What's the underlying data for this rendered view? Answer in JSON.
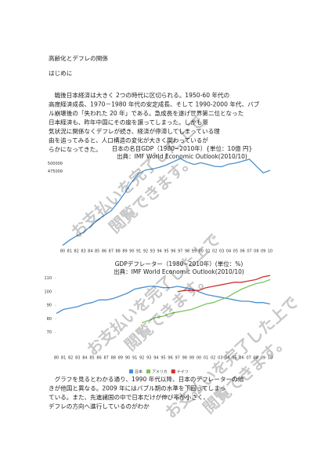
{
  "header": {
    "title": "高齢化とデフレの関係"
  },
  "sections": [
    {
      "heading": "はじめに",
      "lines": [
        "　戦後日本経済は大きく 2つの時代に区切られる。1950-60 年代の",
        "高度経済成長、1970－1980 年代の安定成長、そして 1990-2000 年代、バブ",
        "ル崩壊後の「失われた 20 年」である。急成長を遂げ世界第二位となった",
        "日本経済も、昨年中国にその座を譲ってしまった。しかも景",
        "気状況に関係なくデフレが続き、経済が停滞してしまっている理",
        "由を追ってみると、人口構造の変化が大きく関わっているが",
        "らかになってきた。"
      ]
    },
    {
      "lines": [
        "　グラフを見るとわかる通り、1990 年代以降、日本のデフレーターの傾",
        "きが他国と異なる。2009 年にはバブル期の水準を下回ってしまっ",
        "ている。また、先進諸国の中で日本だけが伸び率が小さく、",
        "デフレの方向へ進行しているのがわか"
      ]
    }
  ],
  "figures": [
    {
      "type": "line",
      "title": "日本の名目GDP（1980~2010年）{単位：10億 円}",
      "subtitle": "出典：IMF World Economic Outlook(2010/10)",
      "x": [
        "80",
        "81",
        "82",
        "83",
        "84",
        "85",
        "86",
        "87",
        "88",
        "89",
        "90",
        "91",
        "92",
        "93",
        "94",
        "95",
        "96",
        "97",
        "98",
        "99",
        "00",
        "01",
        "02",
        "03",
        "04",
        "05",
        "06",
        "07",
        "08",
        "09",
        "10"
      ],
      "series": [
        {
          "name": "日本",
          "color": "#4a90d0",
          "values": [
            248000,
            264000,
            277000,
            288000,
            306000,
            325000,
            340000,
            354000,
            380000,
            410000,
            443000,
            469000,
            480000,
            483000,
            488000,
            495000,
            505000,
            515000,
            504000,
            497000,
            502000,
            497000,
            491000,
            490000,
            498000,
            501000,
            507000,
            513000,
            492000,
            471000,
            479000
          ]
        }
      ],
      "ylim": [
        250000,
        525000
      ],
      "yticks": [
        475000,
        500000
      ],
      "legend": false
    },
    {
      "type": "line",
      "title": "GDPデフレーター（1980~2010年）(単位：%)",
      "subtitle": "出典：IMF World Economic Outlook(2010/10)",
      "x": [
        "80",
        "81",
        "82",
        "83",
        "84",
        "85",
        "86",
        "87",
        "88",
        "89",
        "90",
        "91",
        "92",
        "93",
        "94",
        "95",
        "96",
        "97",
        "98",
        "99",
        "00",
        "01",
        "02",
        "03",
        "04",
        "05",
        "06",
        "07",
        "08",
        "09",
        "10"
      ],
      "series": [
        {
          "name": "日本",
          "color": "#4a90d0",
          "values": [
            84,
            87,
            88,
            89,
            91,
            92,
            94,
            94,
            95,
            97,
            99,
            102,
            103,
            104,
            104,
            103,
            103,
            104,
            103,
            102,
            100,
            98,
            97,
            96,
            95,
            94,
            93,
            93,
            92,
            92,
            91
          ]
        },
        {
          "name": "アメリカ",
          "color": "#7cc45a",
          "values": [
            null,
            null,
            null,
            null,
            null,
            null,
            null,
            null,
            null,
            null,
            null,
            null,
            77,
            79,
            81,
            82,
            84,
            85,
            86,
            87,
            89,
            91,
            92,
            94,
            96,
            99,
            102,
            104,
            106,
            107,
            109
          ]
        },
        {
          "name": "ドイツ",
          "color": "#d03030",
          "values": [
            null,
            null,
            null,
            null,
            null,
            null,
            null,
            null,
            null,
            null,
            null,
            null,
            null,
            null,
            null,
            null,
            null,
            100,
            101,
            101,
            101,
            103,
            104,
            105,
            106,
            107,
            107,
            108,
            109,
            111,
            112
          ]
        }
      ],
      "ylim": [
        60,
        115
      ],
      "yticks": [
        70,
        80,
        90,
        100,
        110
      ],
      "legend": true
    }
  ],
  "watermark": {
    "line1": "お支払いを完了した上で",
    "line2": "閲覧できます。"
  }
}
